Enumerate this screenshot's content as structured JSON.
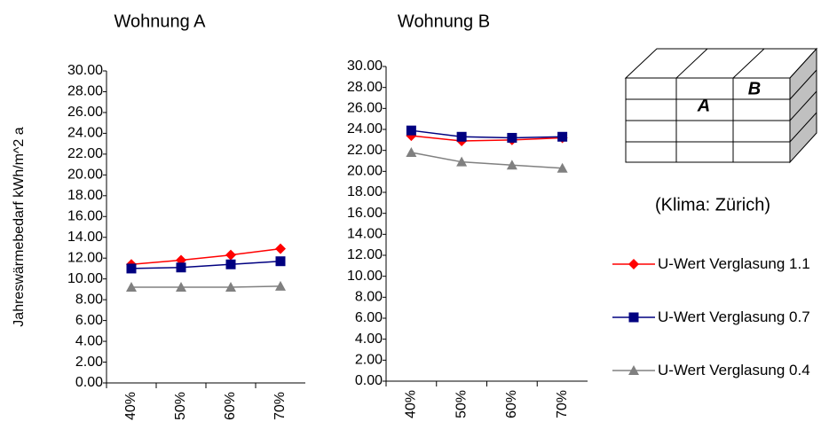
{
  "chart_data": [
    {
      "type": "line",
      "title": "Wohnung A",
      "ylabel": "Jahreswärmebedarf kWh/m^2 a",
      "categories": [
        "40%",
        "50%",
        "60%",
        "70%"
      ],
      "ylim": [
        0,
        30
      ],
      "yticks": [
        {
          "value": 0,
          "label": "0.00"
        },
        {
          "value": 2,
          "label": "2.00"
        },
        {
          "value": 4,
          "label": "4.00"
        },
        {
          "value": 6,
          "label": "6.00"
        },
        {
          "value": 8,
          "label": "8.00"
        },
        {
          "value": 10,
          "label": "10.00"
        },
        {
          "value": 12,
          "label": "12.00"
        },
        {
          "value": 14,
          "label": "14.00"
        },
        {
          "value": 16,
          "label": "16.00"
        },
        {
          "value": 18,
          "label": "18.00"
        },
        {
          "value": 20,
          "label": "20.00"
        },
        {
          "value": 22,
          "label": "22.00"
        },
        {
          "value": 24,
          "label": "24.00"
        },
        {
          "value": 26,
          "label": "26.00"
        },
        {
          "value": 28,
          "label": "28.00"
        },
        {
          "value": 30,
          "label": "30.00"
        }
      ],
      "grid": false,
      "legend": "right",
      "series": [
        {
          "name": "U-Wert Verglasung 1.1",
          "color": "#ff0000",
          "marker": "diamond",
          "values": [
            11.4,
            11.8,
            12.3,
            12.9
          ]
        },
        {
          "name": "U-Wert Verglasung 0.7",
          "color": "#000080",
          "marker": "square",
          "values": [
            11.0,
            11.1,
            11.4,
            11.7
          ]
        },
        {
          "name": "U-Wert Verglasung 0.4",
          "color": "#808080",
          "marker": "triangle",
          "values": [
            9.2,
            9.2,
            9.2,
            9.3
          ]
        }
      ]
    },
    {
      "type": "line",
      "title": "Wohnung B",
      "categories": [
        "40%",
        "50%",
        "60%",
        "70%"
      ],
      "ylim": [
        0,
        30
      ],
      "yticks": [
        {
          "value": 0,
          "label": "0.00"
        },
        {
          "value": 2,
          "label": "2.00"
        },
        {
          "value": 4,
          "label": "4.00"
        },
        {
          "value": 6,
          "label": "6.00"
        },
        {
          "value": 8,
          "label": "8.00"
        },
        {
          "value": 10,
          "label": "10.00"
        },
        {
          "value": 12,
          "label": "12.00"
        },
        {
          "value": 14,
          "label": "14.00"
        },
        {
          "value": 16,
          "label": "16.00"
        },
        {
          "value": 18,
          "label": "18.00"
        },
        {
          "value": 20,
          "label": "20.00"
        },
        {
          "value": 22,
          "label": "22.00"
        },
        {
          "value": 24,
          "label": "24.00"
        },
        {
          "value": 26,
          "label": "26.00"
        },
        {
          "value": 28,
          "label": "28.00"
        },
        {
          "value": 30,
          "label": "30.00"
        }
      ],
      "grid": false,
      "series": [
        {
          "name": "U-Wert Verglasung 1.1",
          "color": "#ff0000",
          "marker": "diamond",
          "values": [
            23.4,
            22.9,
            23.0,
            23.2
          ]
        },
        {
          "name": "U-Wert Verglasung 0.7",
          "color": "#000080",
          "marker": "square",
          "values": [
            23.9,
            23.3,
            23.2,
            23.3
          ]
        },
        {
          "name": "U-Wert Verglasung 0.4",
          "color": "#808080",
          "marker": "triangle",
          "values": [
            21.8,
            20.9,
            20.6,
            20.3
          ]
        }
      ]
    }
  ],
  "diagram": {
    "labels": [
      "A",
      "B"
    ],
    "caption": "(Klima: Zürich)"
  }
}
